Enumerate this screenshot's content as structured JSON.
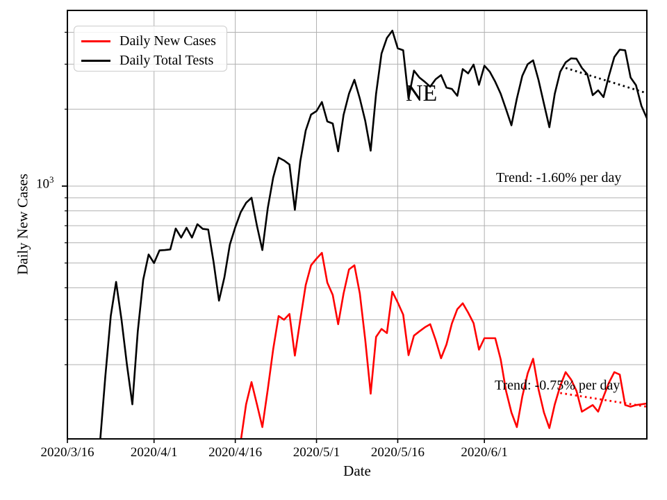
{
  "figure_colors": {
    "background": "#ffffff",
    "grid": "#b0b0b0",
    "spine": "#000000",
    "cases_line": "#ff0000",
    "tests_line": "#000000"
  },
  "axes": {
    "xlabel": "Date",
    "ylabel": "Daily New Cases",
    "ytick": {
      "base": "10",
      "exp": "3"
    },
    "xticks": [
      {
        "date": "2020-03-16",
        "label": "2020/3/16"
      },
      {
        "date": "2020-04-01",
        "label": "2020/4/1"
      },
      {
        "date": "2020-04-16",
        "label": "2020/4/16"
      },
      {
        "date": "2020-05-01",
        "label": "2020/5/1"
      },
      {
        "date": "2020-05-16",
        "label": "2020/5/16"
      },
      {
        "date": "2020-06-01",
        "label": "2020/6/1"
      }
    ]
  },
  "legend": {
    "items": [
      {
        "label": "Daily New Cases",
        "color": "#ff0000"
      },
      {
        "label": "Daily Total Tests",
        "color": "#000000"
      }
    ]
  },
  "annotations": {
    "state": "NE"
  },
  "chart_data": {
    "type": "line",
    "yscale": "log",
    "grid": "both",
    "xlim": [
      "2020-03-16",
      "2020-07-01"
    ],
    "ylim": [
      102.5,
      4870
    ],
    "ygrid_values": [
      200,
      300,
      400,
      500,
      600,
      700,
      800,
      900,
      1000,
      2000,
      3000,
      4000
    ],
    "ymajor_values": [
      1000
    ],
    "title": "",
    "xlabel": "Date",
    "ylabel": "Daily New Cases",
    "series": [
      {
        "name": "Daily Total Tests",
        "color": "#000000",
        "start_date": "2020-03-22",
        "values": [
          98,
          180,
          310,
          422,
          300,
          200,
          140,
          270,
          430,
          540,
          500,
          560,
          562,
          565,
          682,
          629,
          687,
          629,
          709,
          680,
          676,
          505,
          356,
          440,
          590,
          690,
          790,
          860,
          900,
          700,
          562,
          820,
          1080,
          1292,
          1260,
          1215,
          808,
          1250,
          1650,
          1905,
          1966,
          2133,
          1790,
          1757,
          1368,
          1900,
          2300,
          2606,
          2200,
          1800,
          1376,
          2300,
          3300,
          3800,
          4060,
          3460,
          3400,
          2200,
          2830,
          2660,
          2560,
          2450,
          2620,
          2720,
          2430,
          2400,
          2255,
          2870,
          2760,
          2990,
          2490,
          2960,
          2800,
          2560,
          2300,
          2000,
          1730,
          2200,
          2700,
          3000,
          3105,
          2600,
          2100,
          1700,
          2300,
          2800,
          3050,
          3160,
          3150,
          2900,
          2740,
          2270,
          2370,
          2230,
          2700,
          3200,
          3420,
          3400,
          2660,
          2480,
          2060,
          1845
        ]
      },
      {
        "name": "Daily New Cases",
        "color": "#ff0000",
        "start_date": "2020-04-17",
        "values": [
          100,
          140,
          171,
          140,
          114,
          160,
          230,
          310,
          300,
          316,
          217,
          300,
          410,
          490,
          520,
          548,
          419,
          375,
          288,
          380,
          472,
          490,
          380,
          250,
          154,
          257,
          276,
          266,
          386,
          350,
          314,
          218,
          260,
          270,
          280,
          288,
          250,
          212,
          240,
          290,
          330,
          348,
          320,
          291,
          229,
          254,
          254,
          254,
          210,
          158,
          130,
          114,
          150,
          185,
          211,
          160,
          130,
          113,
          140,
          165,
          187,
          175,
          158,
          131,
          135,
          139,
          131,
          150,
          170,
          187,
          183,
          139,
          137,
          139,
          140,
          141
        ]
      }
    ],
    "trend_lines": [
      {
        "series": "Daily Total Tests",
        "label": "Trend: -1.60% per day",
        "color": "#000000",
        "start_date": "2020-06-16",
        "start_value": 2900,
        "end_date": "2020-07-01",
        "end_value": 2310
      },
      {
        "series": "Daily New Cases",
        "label": "Trend: -0.75% per day",
        "color": "#ff0000",
        "start_date": "2020-06-15",
        "start_value": 155,
        "end_date": "2020-07-01",
        "end_value": 137
      }
    ]
  }
}
